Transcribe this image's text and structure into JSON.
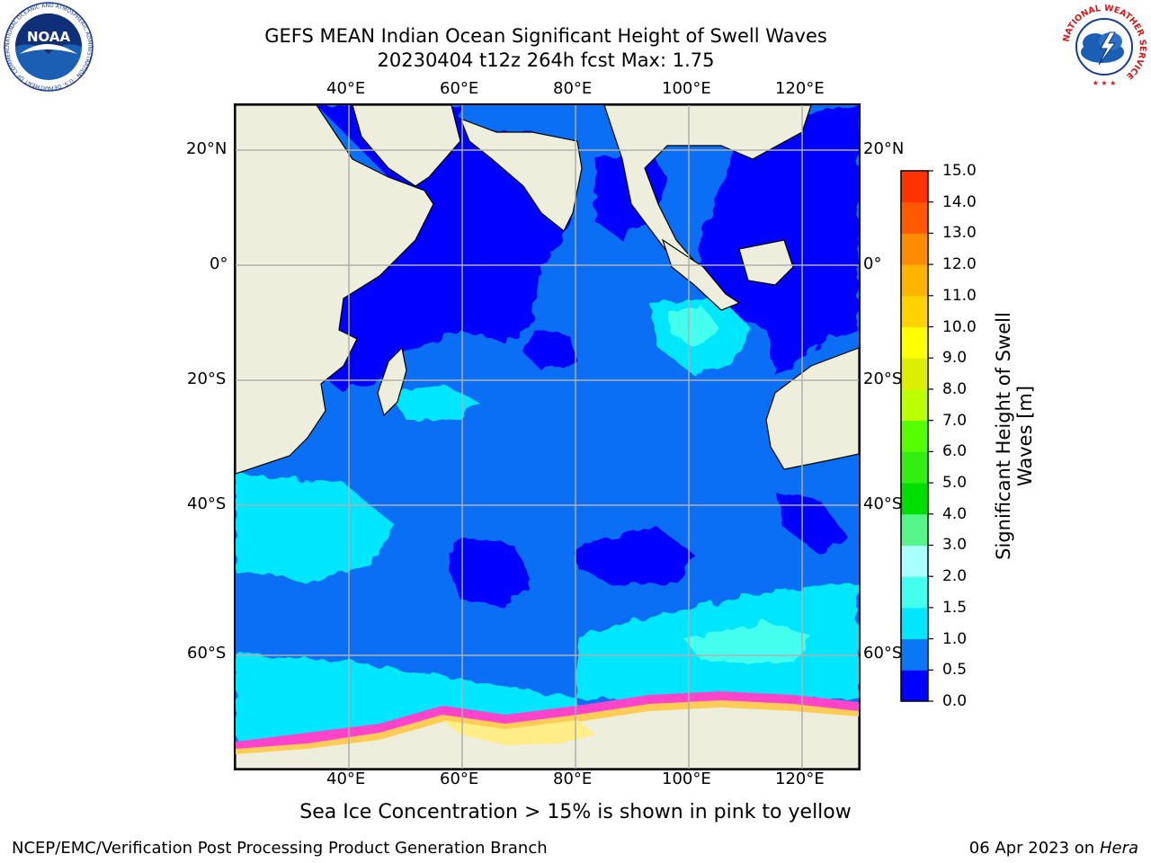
{
  "title": {
    "line1": "GEFS MEAN Indian Ocean Significant Height of Swell Waves",
    "line2": "20230404 t12z 264h fcst   Max: 1.75"
  },
  "map": {
    "lon_ticks": [
      "40°E",
      "60°E",
      "80°E",
      "100°E",
      "120°E"
    ],
    "lat_ticks": [
      "20°N",
      "0°",
      "20°S",
      "40°S",
      "60°S"
    ],
    "land_color": "#eeeedd",
    "ice_colors": [
      "#ff44cc",
      "#ff9966",
      "#ffcc55",
      "#ffee88"
    ]
  },
  "colorbar": {
    "label_line1": "Significant Height of Swell",
    "label_line2": "Waves [m]",
    "ticks": [
      "0.0",
      "0.5",
      "1.0",
      "1.5",
      "2.0",
      "3.0",
      "4.0",
      "5.0",
      "6.0",
      "7.0",
      "8.0",
      "9.0",
      "10.0",
      "11.0",
      "12.0",
      "13.0",
      "14.0",
      "15.0"
    ],
    "colors": [
      "#0000ff",
      "#0a78f5",
      "#00e6ff",
      "#44ffee",
      "#aaffff",
      "#55f58a",
      "#00dd00",
      "#33ee11",
      "#55ff00",
      "#bbff00",
      "#ddee00",
      "#ffff00",
      "#ffd200",
      "#ffb400",
      "#ff8c00",
      "#ff5a00",
      "#ff3200",
      "#ff0000"
    ]
  },
  "footer": {
    "note": "Sea Ice Concentration > 15% is shown in pink to yellow",
    "left": "NCEP/EMC/Verification Post Processing Product Generation Branch",
    "right_date": "06 Apr 2023 on ",
    "right_machine": "Hera"
  },
  "logos": {
    "noaa_text": "NOAA",
    "noaa_ring": "NATIONAL OCEANIC AND ATMOSPHERIC ADMINISTRATION · U.S. DEPARTMENT OF COMMERCE",
    "nws_ring": "NATIONAL WEATHER SERVICE"
  }
}
